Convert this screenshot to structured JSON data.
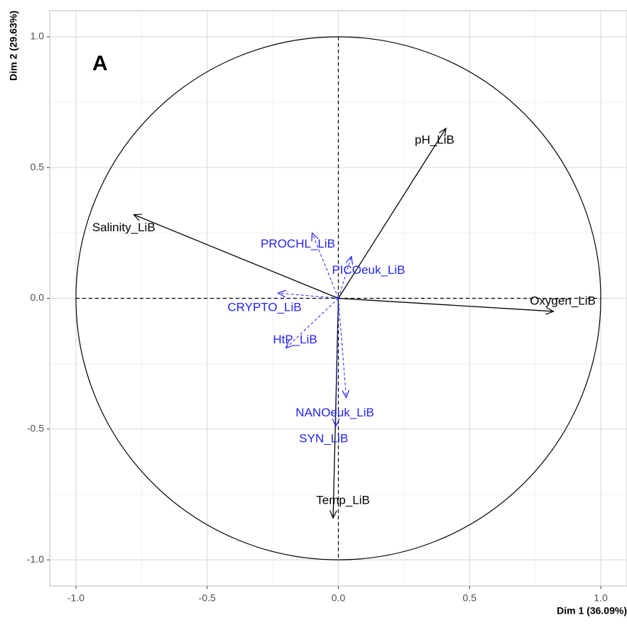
{
  "chart_data": {
    "type": "pca-circle",
    "panel_label": "A",
    "x_label": "Dim 1 (36.09%)",
    "y_label": "Dim 2 (29.63%)",
    "xlim": [
      -1.1,
      1.1
    ],
    "ylim": [
      -1.1,
      1.1
    ],
    "xticks": [
      {
        "value": -1,
        "label": "-1.0"
      },
      -0.5,
      {
        "value": 0,
        "label": "0.0"
      },
      0.5,
      {
        "value": 1,
        "label": "1.0"
      }
    ],
    "yticks": [
      {
        "value": -1,
        "label": "-1.0"
      },
      -0.5,
      {
        "value": 0,
        "label": "0.0"
      },
      0.5,
      {
        "value": 1,
        "label": "1.0"
      }
    ],
    "grid": true,
    "series": [
      {
        "color": "#000000",
        "dashed": false,
        "labels": [
          "pH_LiB",
          "Salinity_LiB",
          "Oxygen_LiB",
          "Temp_LiB"
        ],
        "x": [
          0.41,
          -0.78,
          0.82,
          -0.02
        ],
        "y": [
          0.65,
          0.32,
          -0.05,
          -0.84
        ]
      },
      {
        "color": "#2222ee",
        "dashed": true,
        "labels": [
          "PROCHL_LiB",
          "PICOeuk_LiB",
          "CRYPTO_LiB",
          "HtP_LiB",
          "NANOeuk_LiB",
          "SYN_LiB"
        ],
        "x": [
          -0.1,
          0.05,
          -0.23,
          -0.2,
          0.03,
          -0.01
        ],
        "y": [
          0.25,
          0.16,
          0.02,
          -0.19,
          -0.38,
          -0.49
        ]
      }
    ]
  }
}
